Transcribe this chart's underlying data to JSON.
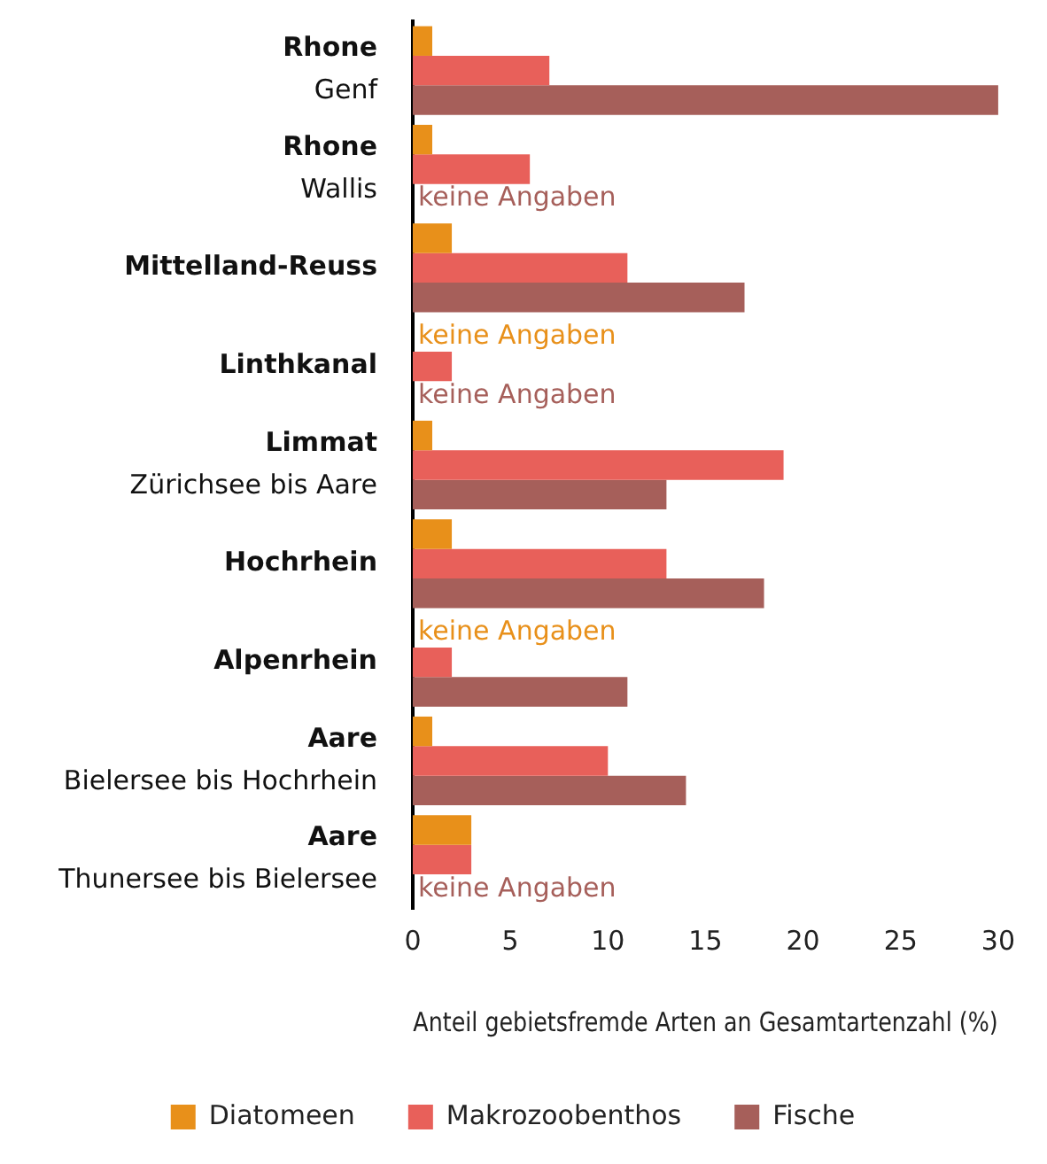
{
  "chart_data": {
    "type": "bar",
    "orientation": "horizontal",
    "xlabel": "Anteil gebietsfremde Arten an Gesamtartenzahl (%)",
    "categories": [
      "Rhone\nGenf",
      "Rhone\nWallis",
      "Mittelland-Reuss",
      "Linthkanal",
      "Limmat\nZürichsee bis Aare",
      "Hochrhein",
      "Alpenrhein",
      "Aare\nBielersee bis Hochrhein",
      "Aare\nThunersee bis Bielersee"
    ],
    "series": [
      {
        "name": "Diatomeen",
        "color": "#e8901a",
        "values": [
          1,
          1,
          2,
          null,
          1,
          2,
          null,
          1,
          3
        ],
        "value_labels": [
          null,
          null,
          null,
          "keine Angaben",
          null,
          null,
          "keine Angaben",
          null,
          null
        ]
      },
      {
        "name": "Makrozoobenthos",
        "color": "#e8605a",
        "values": [
          7,
          6,
          11,
          2,
          19,
          13,
          2,
          10,
          3
        ]
      },
      {
        "name": "Fische",
        "color": "#a65f5a",
        "values": [
          30,
          null,
          17,
          null,
          13,
          18,
          11,
          14,
          null
        ],
        "value_labels": [
          null,
          "keine Angaben",
          null,
          "keine Angaben",
          null,
          null,
          null,
          null,
          "keine Angaben"
        ]
      }
    ],
    "xlim": [
      0,
      30
    ],
    "xticks": [
      0,
      5,
      10,
      15,
      20,
      25,
      30
    ],
    "grid": false,
    "legend": "bottom"
  }
}
